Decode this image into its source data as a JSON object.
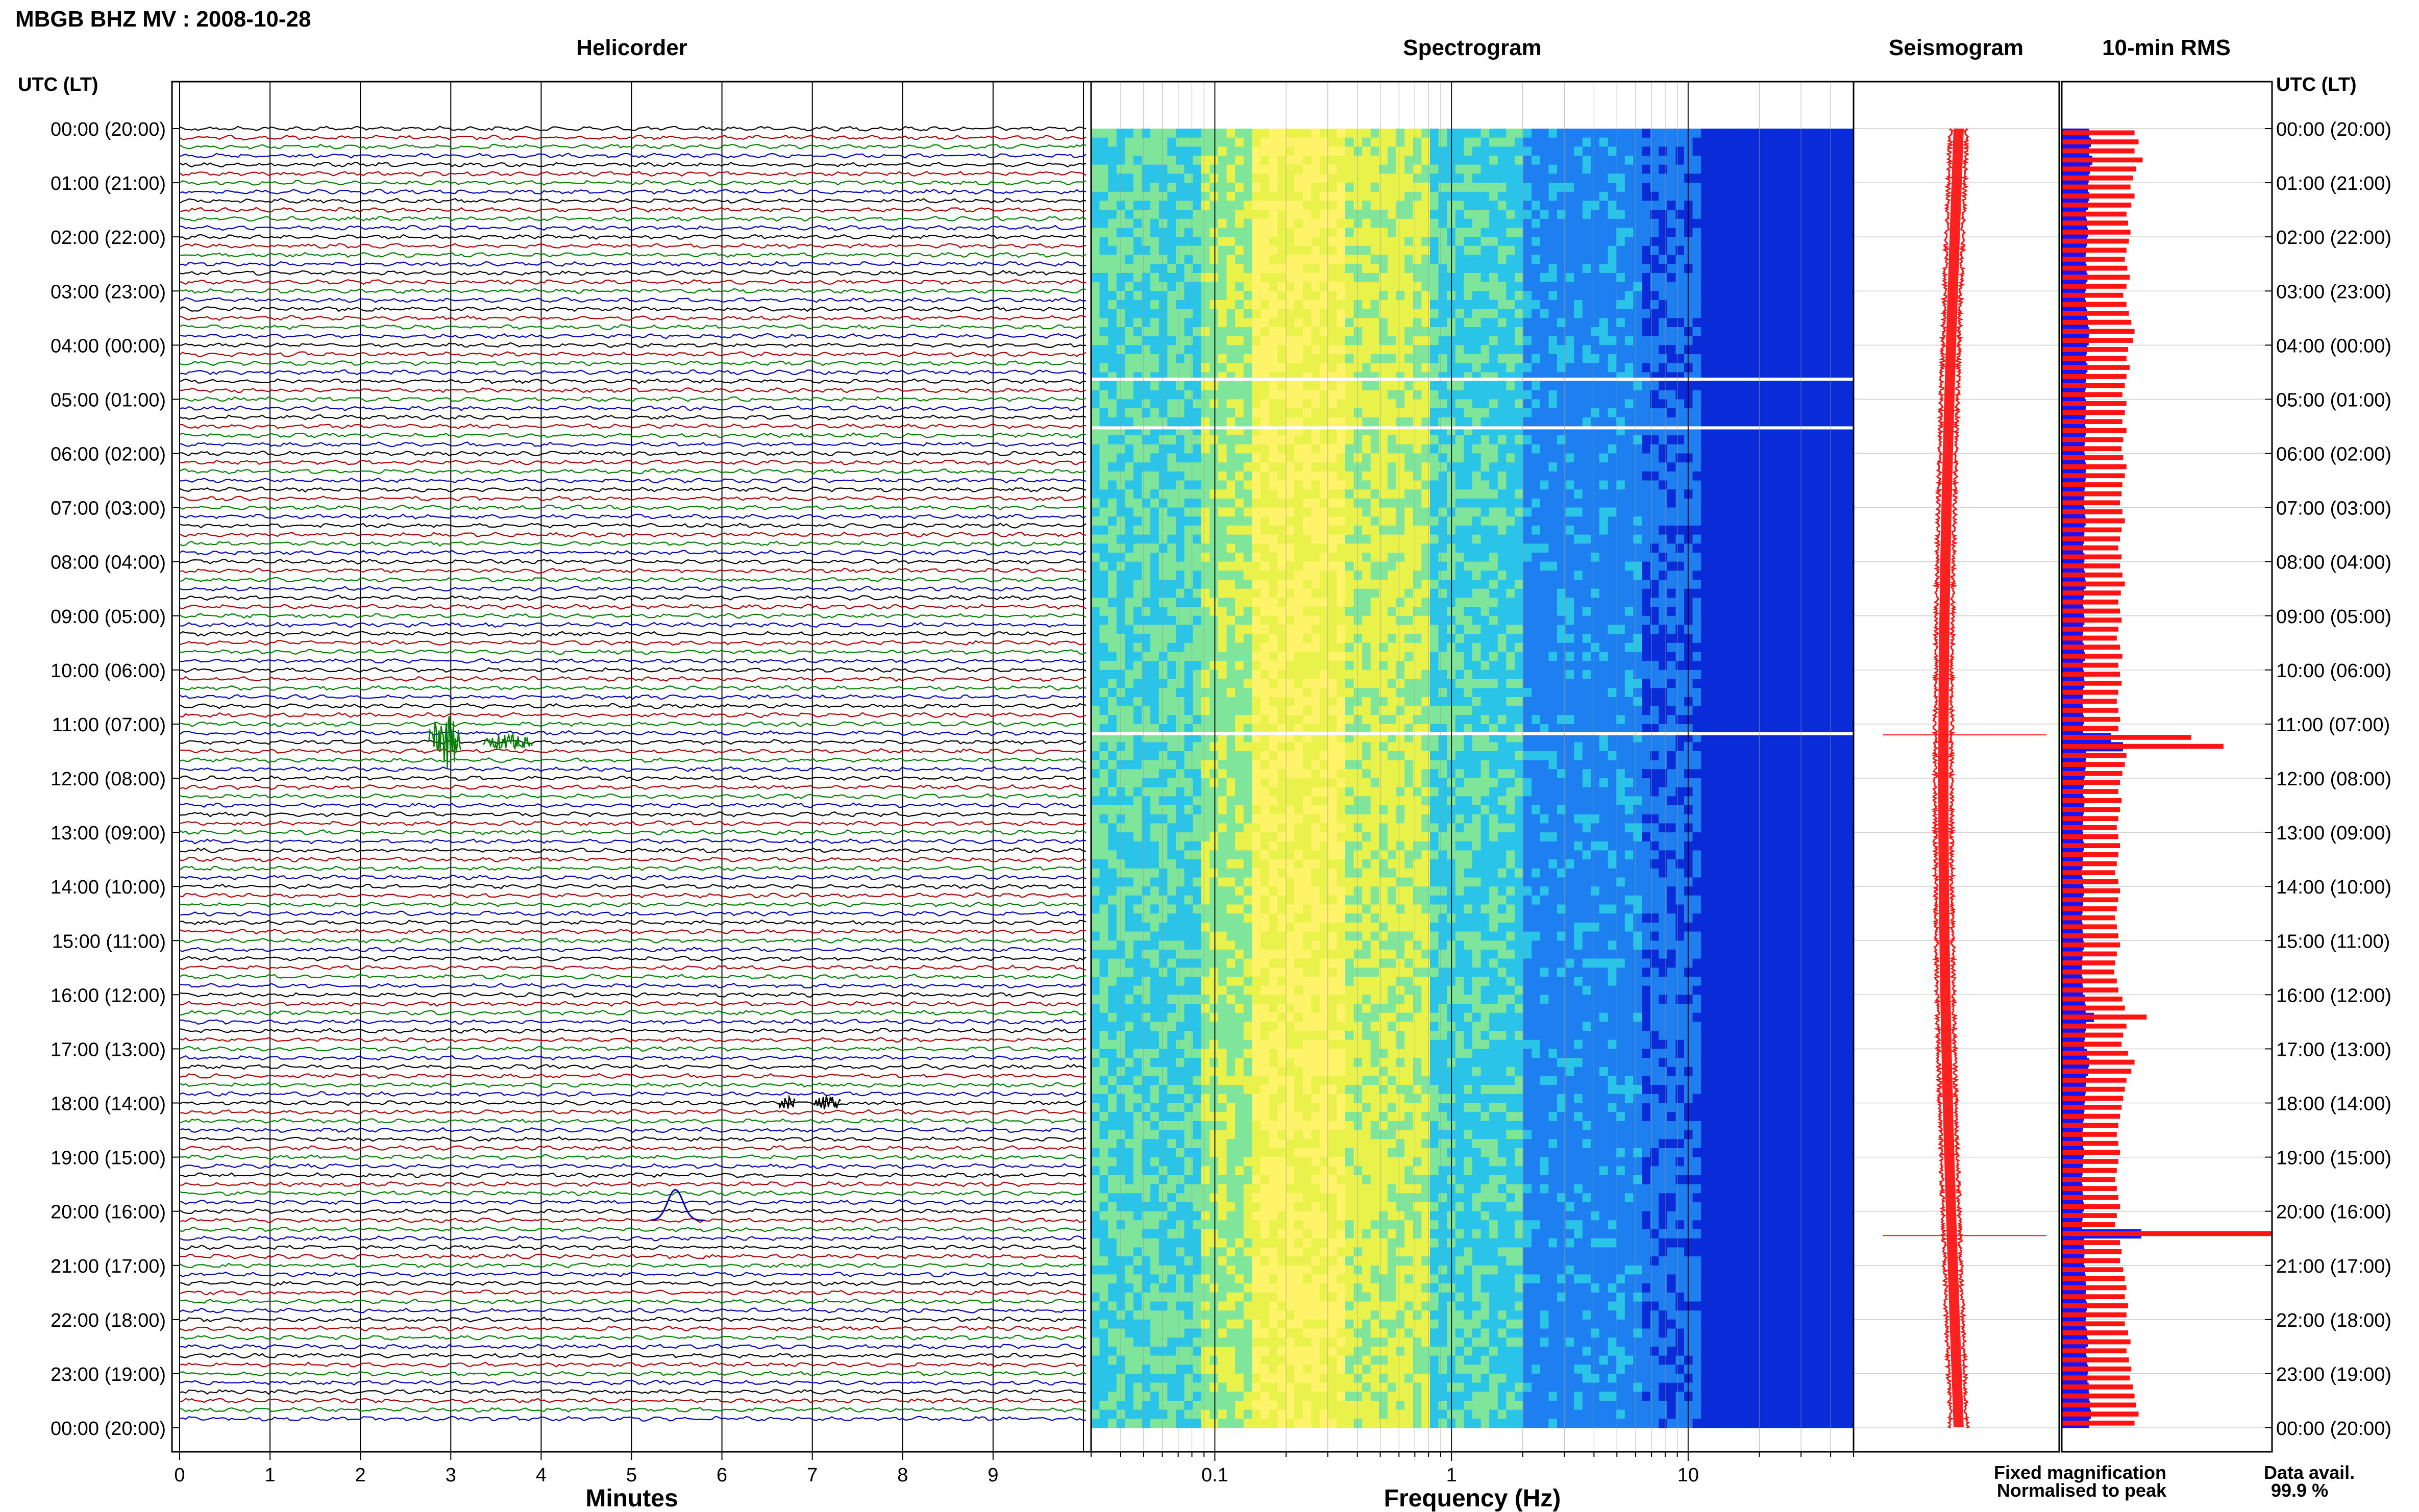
{
  "header": {
    "station_title": "MBGB BHZ MV : 2008-10-28",
    "utc_label_left": "UTC (LT)",
    "utc_label_right": "UTC (LT)"
  },
  "panels": {
    "helicorder_title": "Helicorder",
    "spectrogram_title": "Spectrogram",
    "seismogram_title": "Seismogram",
    "rms_title": "10-min RMS"
  },
  "time_labels": [
    "00:00 (20:00)",
    "01:00 (21:00)",
    "02:00 (22:00)",
    "03:00 (23:00)",
    "04:00 (00:00)",
    "05:00 (01:00)",
    "06:00 (02:00)",
    "07:00 (03:00)",
    "08:00 (04:00)",
    "09:00 (05:00)",
    "10:00 (06:00)",
    "11:00 (07:00)",
    "12:00 (08:00)",
    "13:00 (09:00)",
    "14:00 (10:00)",
    "15:00 (11:00)",
    "16:00 (12:00)",
    "17:00 (13:00)",
    "18:00 (14:00)",
    "19:00 (15:00)",
    "20:00 (16:00)",
    "21:00 (17:00)",
    "22:00 (18:00)",
    "23:00 (19:00)",
    "00:00 (20:00)"
  ],
  "helicorder": {
    "xlabel": "Minutes",
    "xticks": [
      "0",
      "1",
      "2",
      "3",
      "4",
      "5",
      "6",
      "7",
      "8",
      "9"
    ],
    "trace_colors": [
      "#000000",
      "#b00000",
      "#008000",
      "#0000c0"
    ],
    "rows": 144,
    "minutes_per_row": 10,
    "events": [
      {
        "row": 68,
        "start_min": 2.75,
        "end_min": 3.1,
        "amp": 1.0,
        "color": "#008000"
      },
      {
        "row": 68,
        "start_min": 3.35,
        "end_min": 3.9,
        "amp": 0.3,
        "color": "#008000"
      },
      {
        "row": 108,
        "start_min": 6.6,
        "end_min": 6.8,
        "amp": 0.25,
        "color": "#000000"
      },
      {
        "row": 108,
        "start_min": 7.0,
        "end_min": 7.3,
        "amp": 0.3,
        "color": "#000000"
      },
      {
        "row": 121,
        "start_min": 5.2,
        "end_min": 5.8,
        "amp": -1.0,
        "color": "#0000c0"
      }
    ]
  },
  "spectrogram": {
    "xlabel": "Frequency (Hz)",
    "xticks": [
      "0.1",
      "1",
      "10"
    ],
    "freq_range_hz": [
      0.03,
      50
    ],
    "gaps_hours": [
      4.6,
      5.5,
      11.15
    ]
  },
  "seismogram": {
    "spikes_hours": [
      11.2,
      20.45
    ]
  },
  "rms": {
    "fixed_values": [
      0.9,
      0.95,
      0.9,
      1.0,
      0.92,
      0.88,
      0.85,
      0.9,
      0.86,
      0.8,
      0.82,
      0.85,
      0.83,
      0.8,
      0.78,
      0.81,
      0.84,
      0.8,
      0.76,
      0.8,
      0.83,
      0.86,
      0.9,
      0.88,
      0.82,
      0.8,
      0.84,
      0.8,
      0.78,
      0.75,
      0.8,
      0.78,
      0.75,
      0.8,
      0.76,
      0.74,
      0.76,
      0.8,
      0.78,
      0.75,
      0.74,
      0.72,
      0.75,
      0.78,
      0.74,
      0.72,
      0.7,
      0.74,
      0.72,
      0.75,
      0.78,
      0.73,
      0.7,
      0.72,
      0.74,
      0.7,
      0.68,
      0.72,
      0.75,
      0.7,
      0.72,
      0.74,
      0.7,
      0.68,
      0.7,
      0.72,
      0.7,
      1.6,
      2.0,
      0.8,
      0.78,
      0.75,
      0.72,
      0.7,
      0.74,
      0.72,
      0.7,
      0.68,
      0.7,
      0.72,
      0.7,
      0.68,
      0.66,
      0.7,
      0.72,
      0.7,
      0.68,
      0.66,
      0.68,
      0.7,
      0.72,
      0.68,
      0.66,
      0.65,
      0.68,
      0.7,
      0.75,
      0.78,
      1.05,
      0.8,
      0.76,
      0.74,
      0.82,
      0.9,
      0.86,
      0.8,
      0.78,
      0.76,
      0.74,
      0.72,
      0.7,
      0.68,
      0.7,
      0.72,
      0.7,
      0.68,
      0.66,
      0.68,
      0.7,
      0.72,
      0.68,
      0.66,
      2.6,
      0.72,
      0.74,
      0.72,
      0.76,
      0.78,
      0.8,
      0.78,
      0.82,
      0.8,
      0.78,
      0.82,
      0.85,
      0.8,
      0.83,
      0.86,
      0.84,
      0.88,
      0.9,
      0.92,
      0.95,
      0.9
    ],
    "peak_row": 122
  },
  "legend": {
    "fixed_label": "Fixed magnification",
    "fixed_color": "#1414ff",
    "normalised_label": "Normalised to peak",
    "normalised_color": "#ff1414"
  },
  "availability": {
    "label": "Data avail.",
    "value": "99.9 %"
  }
}
